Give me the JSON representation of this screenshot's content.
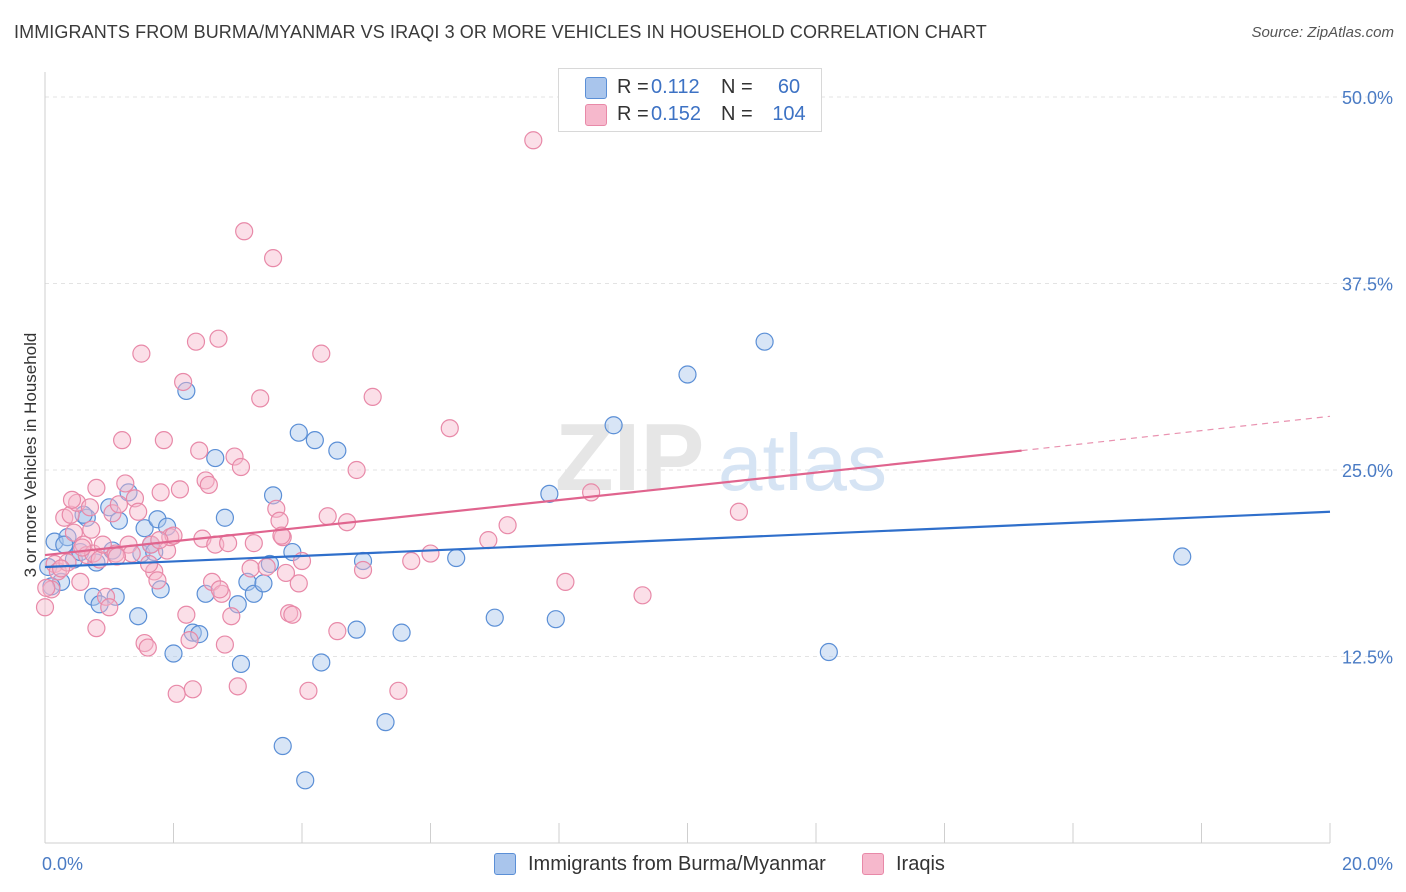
{
  "header": {
    "title": "IMMIGRANTS FROM BURMA/MYANMAR VS IRAQI 3 OR MORE VEHICLES IN HOUSEHOLD CORRELATION CHART",
    "source": "Source: ZipAtlas.com"
  },
  "watermark": {
    "part1": "ZIP",
    "part2": "atlas"
  },
  "legend": {
    "rows": [
      {
        "r_label": "R =",
        "r_value": "0.112",
        "n_label": "N =",
        "n_value": "60",
        "color": "#a9c5ec",
        "stroke": "#5b8fd6"
      },
      {
        "r_label": "R =",
        "r_value": "0.152",
        "n_label": "N =",
        "n_value": "104",
        "color": "#f6b8cc",
        "stroke": "#e889a8"
      }
    ]
  },
  "chart_data": {
    "type": "scatter",
    "title": "IMMIGRANTS FROM BURMA/MYANMAR VS IRAQI 3 OR MORE VEHICLES IN HOUSEHOLD CORRELATION CHART",
    "xlabel": "",
    "ylabel": "3 or more Vehicles in Household",
    "xlim": [
      0,
      20
    ],
    "ylim": [
      0,
      52
    ],
    "x_ticks": [
      {
        "value": 0,
        "label": "0.0%"
      },
      {
        "value": 20,
        "label": "20.0%"
      }
    ],
    "y_ticks": [
      {
        "value": 12.5,
        "label": "12.5%"
      },
      {
        "value": 25,
        "label": "25.0%"
      },
      {
        "value": 37.5,
        "label": "37.5%"
      },
      {
        "value": 50,
        "label": "50.0%"
      }
    ],
    "grid": true,
    "legend_position": "top-center",
    "series": [
      {
        "name": "Immigrants from Burma/Myanmar",
        "color": "#a9c5ec",
        "stroke": "#5b8fd6",
        "line_color": "#2f6fcb",
        "trend": {
          "x0": 0,
          "y0": 18.5,
          "x1": 20,
          "y1": 22.2
        },
        "points": [
          [
            0.15,
            20.2
          ],
          [
            0.25,
            17.5
          ],
          [
            0.35,
            20.5
          ],
          [
            0.45,
            19.0
          ],
          [
            0.55,
            19.5
          ],
          [
            0.65,
            21.8
          ],
          [
            0.75,
            16.5
          ],
          [
            0.85,
            16.0
          ],
          [
            1.0,
            22.5
          ],
          [
            1.05,
            19.6
          ],
          [
            1.1,
            16.5
          ],
          [
            1.15,
            21.6
          ],
          [
            1.3,
            23.5
          ],
          [
            1.45,
            15.2
          ],
          [
            1.5,
            19.4
          ],
          [
            1.55,
            21.1
          ],
          [
            1.65,
            20.0
          ],
          [
            1.7,
            19.5
          ],
          [
            1.75,
            21.7
          ],
          [
            1.8,
            17.0
          ],
          [
            1.9,
            21.2
          ],
          [
            2.0,
            12.7
          ],
          [
            2.2,
            30.3
          ],
          [
            2.3,
            14.1
          ],
          [
            2.4,
            14.0
          ],
          [
            2.5,
            16.7
          ],
          [
            2.65,
            25.8
          ],
          [
            2.8,
            21.8
          ],
          [
            3.0,
            16.0
          ],
          [
            3.05,
            12.0
          ],
          [
            3.15,
            17.5
          ],
          [
            3.25,
            16.7
          ],
          [
            3.4,
            17.4
          ],
          [
            3.5,
            18.7
          ],
          [
            3.55,
            23.3
          ],
          [
            3.7,
            6.5
          ],
          [
            3.85,
            19.5
          ],
          [
            3.95,
            27.5
          ],
          [
            4.05,
            4.2
          ],
          [
            4.2,
            27.0
          ],
          [
            4.3,
            12.1
          ],
          [
            4.55,
            26.3
          ],
          [
            4.85,
            14.3
          ],
          [
            4.95,
            18.9
          ],
          [
            5.3,
            8.1
          ],
          [
            5.55,
            14.1
          ],
          [
            6.4,
            19.1
          ],
          [
            7.0,
            15.1
          ],
          [
            7.85,
            23.4
          ],
          [
            7.95,
            15.0
          ],
          [
            8.85,
            28.0
          ],
          [
            10.0,
            31.4
          ],
          [
            11.2,
            33.6
          ],
          [
            12.2,
            12.8
          ],
          [
            17.7,
            19.2
          ],
          [
            0.05,
            18.5
          ],
          [
            0.1,
            17.2
          ],
          [
            0.3,
            20.0
          ],
          [
            0.6,
            22.0
          ],
          [
            0.8,
            18.8
          ]
        ]
      },
      {
        "name": "Iraqis",
        "color": "#f6b8cc",
        "stroke": "#e889a8",
        "line_color": "#e0648e",
        "trend": {
          "x0": 0,
          "y0": 19.3,
          "x1": 15.2,
          "y1": 26.3
        },
        "trend_dashed": {
          "x0": 15.2,
          "y0": 26.3,
          "x1": 20,
          "y1": 28.6
        },
        "points": [
          [
            0.0,
            15.8
          ],
          [
            0.1,
            17.0
          ],
          [
            0.15,
            18.7
          ],
          [
            0.2,
            18.2
          ],
          [
            0.3,
            21.8
          ],
          [
            0.35,
            18.8
          ],
          [
            0.4,
            22.0
          ],
          [
            0.45,
            20.8
          ],
          [
            0.5,
            22.8
          ],
          [
            0.55,
            17.5
          ],
          [
            0.6,
            20.0
          ],
          [
            0.65,
            19.3
          ],
          [
            0.7,
            22.5
          ],
          [
            0.75,
            19.4
          ],
          [
            0.8,
            23.8
          ],
          [
            0.8,
            14.4
          ],
          [
            0.85,
            19.0
          ],
          [
            0.9,
            20.0
          ],
          [
            0.95,
            16.5
          ],
          [
            1.0,
            15.8
          ],
          [
            1.05,
            22.1
          ],
          [
            1.1,
            19.4
          ],
          [
            1.15,
            22.7
          ],
          [
            1.2,
            27.0
          ],
          [
            1.25,
            24.1
          ],
          [
            1.3,
            20.0
          ],
          [
            1.35,
            19.4
          ],
          [
            1.4,
            23.1
          ],
          [
            1.45,
            22.2
          ],
          [
            1.5,
            32.8
          ],
          [
            1.55,
            13.4
          ],
          [
            1.6,
            13.1
          ],
          [
            1.65,
            20.0
          ],
          [
            1.7,
            18.2
          ],
          [
            1.75,
            17.6
          ],
          [
            1.8,
            23.5
          ],
          [
            1.85,
            27.0
          ],
          [
            1.9,
            19.6
          ],
          [
            1.95,
            20.5
          ],
          [
            2.0,
            20.6
          ],
          [
            2.05,
            10.0
          ],
          [
            2.1,
            23.7
          ],
          [
            2.15,
            30.9
          ],
          [
            2.2,
            15.3
          ],
          [
            2.25,
            13.6
          ],
          [
            2.3,
            10.3
          ],
          [
            2.35,
            33.6
          ],
          [
            2.4,
            26.3
          ],
          [
            2.45,
            20.4
          ],
          [
            2.5,
            24.3
          ],
          [
            2.55,
            24.0
          ],
          [
            2.6,
            17.5
          ],
          [
            2.65,
            20.0
          ],
          [
            2.7,
            33.8
          ],
          [
            2.75,
            16.7
          ],
          [
            2.8,
            13.3
          ],
          [
            2.85,
            20.1
          ],
          [
            2.9,
            15.2
          ],
          [
            2.95,
            25.9
          ],
          [
            3.0,
            10.5
          ],
          [
            3.05,
            25.2
          ],
          [
            3.1,
            41.0
          ],
          [
            3.2,
            18.4
          ],
          [
            3.35,
            29.8
          ],
          [
            3.45,
            18.5
          ],
          [
            3.55,
            39.2
          ],
          [
            3.6,
            22.4
          ],
          [
            3.65,
            21.6
          ],
          [
            3.7,
            20.5
          ],
          [
            3.75,
            18.1
          ],
          [
            3.8,
            15.4
          ],
          [
            3.85,
            15.3
          ],
          [
            3.95,
            17.4
          ],
          [
            4.0,
            18.9
          ],
          [
            4.1,
            10.2
          ],
          [
            4.3,
            32.8
          ],
          [
            4.4,
            21.9
          ],
          [
            4.55,
            14.2
          ],
          [
            4.7,
            21.5
          ],
          [
            4.85,
            25.0
          ],
          [
            4.95,
            18.3
          ],
          [
            5.1,
            29.9
          ],
          [
            5.5,
            10.2
          ],
          [
            5.7,
            18.9
          ],
          [
            6.0,
            19.4
          ],
          [
            6.3,
            27.8
          ],
          [
            6.9,
            20.3
          ],
          [
            7.2,
            21.3
          ],
          [
            7.6,
            47.1
          ],
          [
            8.1,
            17.5
          ],
          [
            8.5,
            23.5
          ],
          [
            9.3,
            16.6
          ],
          [
            10.8,
            22.2
          ],
          [
            0.02,
            17.1
          ],
          [
            0.25,
            18.4
          ],
          [
            0.58,
            19.8
          ],
          [
            1.12,
            19.2
          ],
          [
            1.62,
            18.7
          ],
          [
            2.72,
            17.0
          ],
          [
            3.25,
            20.1
          ],
          [
            3.68,
            20.6
          ],
          [
            0.42,
            23.0
          ],
          [
            0.72,
            21.0
          ],
          [
            1.78,
            20.3
          ]
        ]
      }
    ]
  },
  "bottom_legend": [
    {
      "label": "Immigrants from Burma/Myanmar"
    },
    {
      "label": "Iraqis"
    }
  ]
}
